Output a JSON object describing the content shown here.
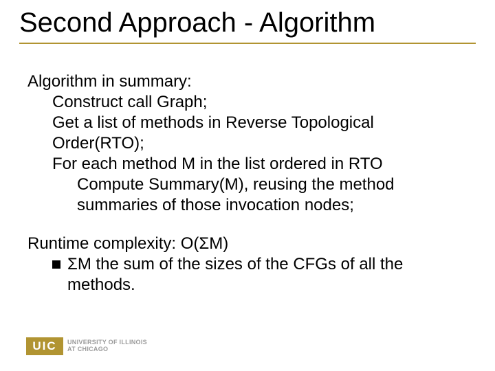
{
  "colors": {
    "background": "#ffffff",
    "text": "#000000",
    "title_rule": "#b19432",
    "logo_block_bg": "#b19432",
    "logo_block_fg": "#ffffff",
    "logo_text": "#9a9a9a"
  },
  "typography": {
    "body_font_family": "Comic Sans MS",
    "title_fontsize_pt": 30,
    "body_fontsize_pt": 18,
    "logo_font_family": "Arial"
  },
  "title": "Second Approach - Algorithm",
  "content": {
    "intro": "Algorithm in summary:",
    "step1": "Construct call Graph;",
    "step2": "Get a list of methods in Reverse Topological Order(RTO);",
    "step3": "For each method M in the list ordered in RTO",
    "step3a": "Compute Summary(M), reusing the method summaries of those invocation nodes;",
    "runtime": "Runtime complexity: O(ΣM)",
    "runtime_detail": "ΣM the sum of the sizes of the CFGs of all the methods."
  },
  "logo": {
    "block": "UIC",
    "line1": "UNIVERSITY OF ILLINOIS",
    "line2": "AT CHICAGO"
  }
}
